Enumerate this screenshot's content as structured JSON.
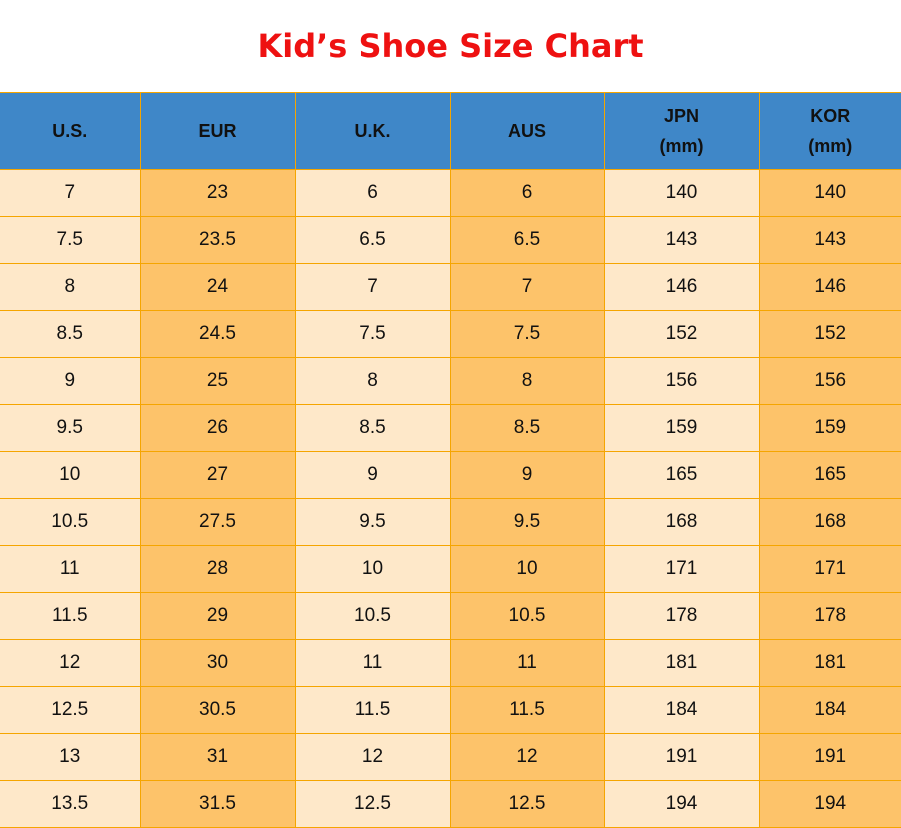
{
  "title": "Kid’s Shoe Size Chart",
  "headers": [
    [
      "U.S.",
      ""
    ],
    [
      "EUR",
      ""
    ],
    [
      "U.K.",
      ""
    ],
    [
      "AUS",
      ""
    ],
    [
      "JPN",
      "(mm)"
    ],
    [
      "KOR",
      "(mm)"
    ]
  ],
  "rows": [
    [
      "7",
      "23",
      "6",
      "6",
      "140",
      "140"
    ],
    [
      "7.5",
      "23.5",
      "6.5",
      "6.5",
      "143",
      "143"
    ],
    [
      "8",
      "24",
      "7",
      "7",
      "146",
      "146"
    ],
    [
      "8.5",
      "24.5",
      "7.5",
      "7.5",
      "152",
      "152"
    ],
    [
      "9",
      "25",
      "8",
      "8",
      "156",
      "156"
    ],
    [
      "9.5",
      "26",
      "8.5",
      "8.5",
      "159",
      "159"
    ],
    [
      "10",
      "27",
      "9",
      "9",
      "165",
      "165"
    ],
    [
      "10.5",
      "27.5",
      "9.5",
      "9.5",
      "168",
      "168"
    ],
    [
      "11",
      "28",
      "10",
      "10",
      "171",
      "171"
    ],
    [
      "11.5",
      "29",
      "10.5",
      "10.5",
      "178",
      "178"
    ],
    [
      "12",
      "30",
      "11",
      "11",
      "181",
      "181"
    ],
    [
      "12.5",
      "30.5",
      "11.5",
      "11.5",
      "184",
      "184"
    ],
    [
      "13",
      "31",
      "12",
      "12",
      "191",
      "191"
    ],
    [
      "13.5",
      "31.5",
      "12.5",
      "12.5",
      "194",
      "194"
    ]
  ],
  "colors": {
    "title": "#ee1111",
    "header": "#3f87c8",
    "light": "#fee8c9",
    "dark": "#fdc36a",
    "border": "#f5a500"
  }
}
